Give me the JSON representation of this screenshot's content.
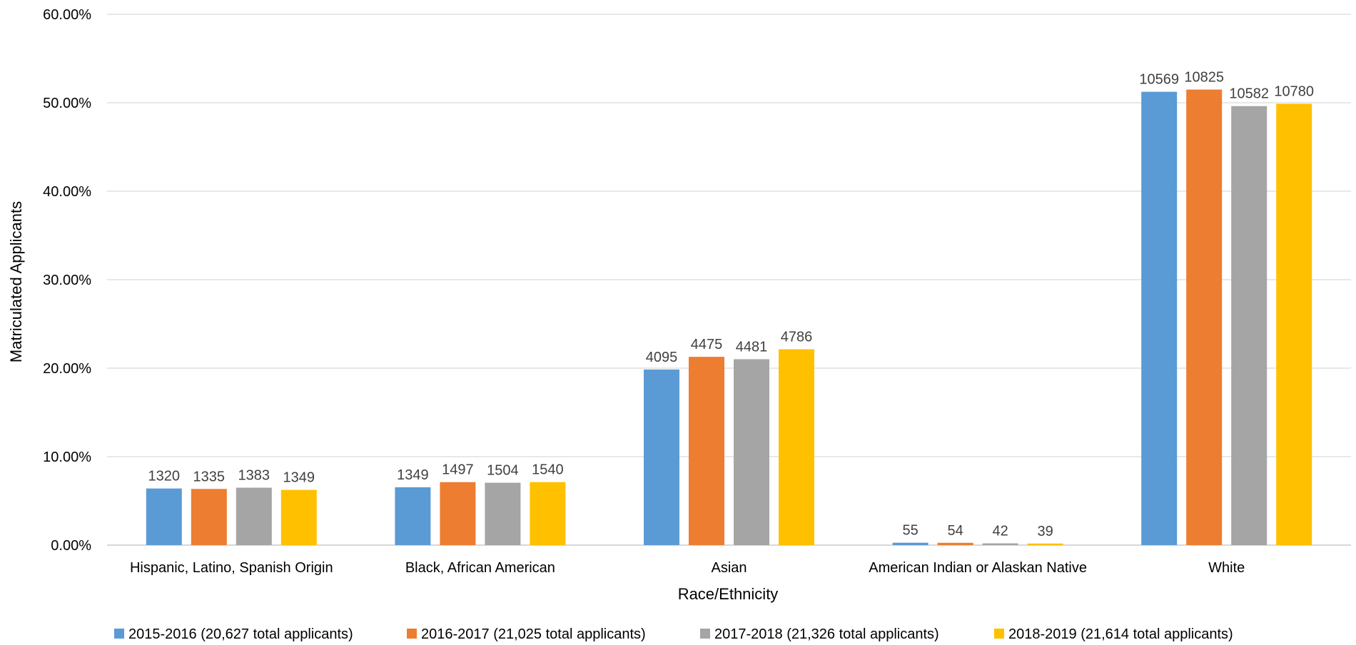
{
  "chart_data": {
    "type": "bar",
    "title": "",
    "xlabel": "Race/Ethnicity",
    "ylabel": "Matriculated Applicants",
    "ylim": [
      0,
      60
    ],
    "yticks": [
      "0.00%",
      "10.00%",
      "20.00%",
      "30.00%",
      "40.00%",
      "50.00%",
      "60.00%"
    ],
    "grid": true,
    "legend_position": "bottom",
    "categories": [
      "Hispanic, Latino, Spanish Origin",
      "Black, African American",
      "Asian",
      "American Indian or Alaskan Native",
      "White"
    ],
    "series": [
      {
        "name": "2015-2016 (20,627 total applicants)",
        "color": "#5B9BD5",
        "values": [
          6.4,
          6.54,
          19.85,
          0.27,
          51.24
        ],
        "labels": [
          "1320",
          "1349",
          "4095",
          "55",
          "10569"
        ]
      },
      {
        "name": "2016-2017 (21,025 total applicants)",
        "color": "#ED7D31",
        "values": [
          6.35,
          7.12,
          21.28,
          0.26,
          51.49
        ],
        "labels": [
          "1335",
          "1497",
          "4475",
          "54",
          "10825"
        ]
      },
      {
        "name": "2017-2018 (21,326 total applicants)",
        "color": "#A5A5A5",
        "values": [
          6.49,
          7.05,
          21.01,
          0.2,
          49.62
        ],
        "labels": [
          "1383",
          "1504",
          "4481",
          "42",
          "10582"
        ]
      },
      {
        "name": "2018-2019 (21,614 total applicants)",
        "color": "#FFC000",
        "values": [
          6.24,
          7.12,
          22.14,
          0.18,
          49.88
        ],
        "labels": [
          "1349",
          "1540",
          "4786",
          "39",
          "10780"
        ]
      }
    ]
  }
}
